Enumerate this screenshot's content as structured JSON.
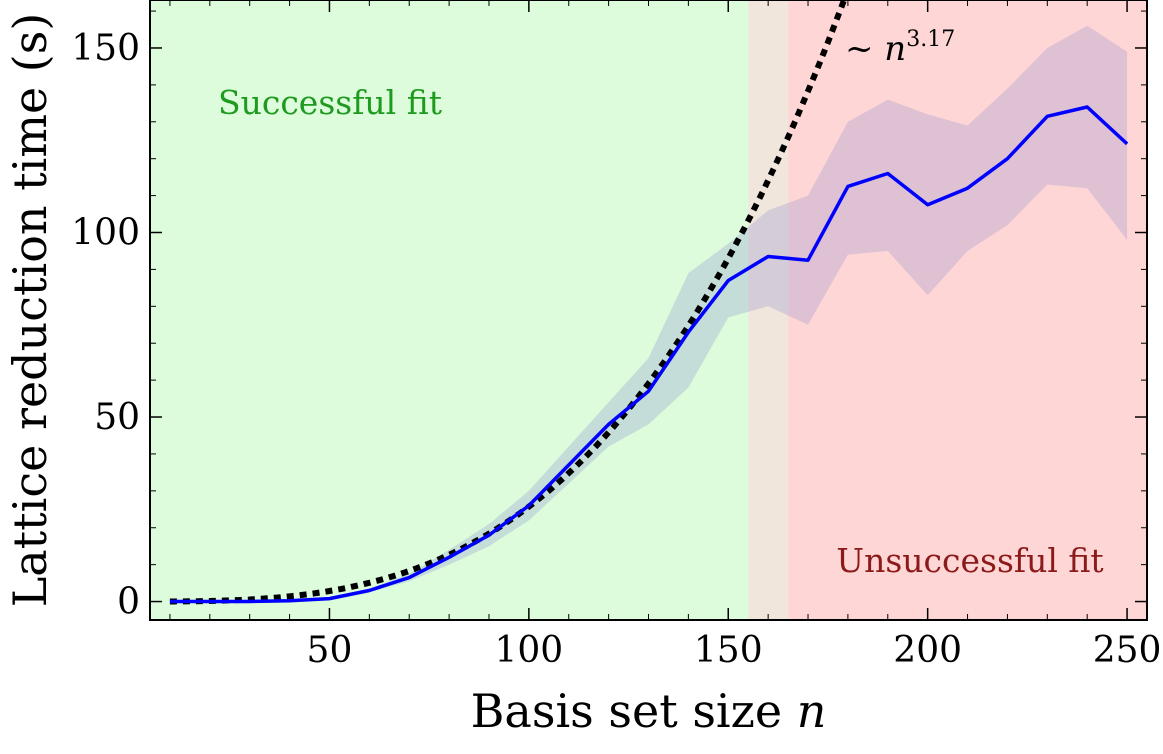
{
  "chart_data": {
    "type": "line",
    "title": "",
    "xlabel": "Basis set size",
    "xlabel_var": "n",
    "ylabel": "Lattice reduction time (s)",
    "xlim": [
      5,
      255
    ],
    "ylim": [
      -5,
      163
    ],
    "x_ticks": [
      50,
      100,
      150,
      200,
      250
    ],
    "y_ticks": [
      0,
      50,
      100,
      150
    ],
    "grid": false,
    "regions": [
      {
        "label": "Successful fit",
        "x_start": 5,
        "x_end": 155,
        "color": "#dcfcdc",
        "label_color": "#1e9a1e"
      },
      {
        "label": "",
        "x_start": 155,
        "x_end": 165,
        "color": "#f0e6dc",
        "label_color": ""
      },
      {
        "label": "Unsuccessful fit",
        "x_start": 165,
        "x_end": 255,
        "color": "#ffd6d6",
        "label_color": "#8b1a1a"
      }
    ],
    "series": [
      {
        "name": "",
        "color": "#0000ff",
        "x": [
          10,
          20,
          30,
          40,
          50,
          60,
          70,
          80,
          90,
          100,
          110,
          120,
          130,
          140,
          150,
          160,
          170,
          180,
          190,
          200,
          210,
          220,
          230,
          240,
          250
        ],
        "y": [
          0,
          0,
          0,
          0.2,
          0.8,
          3,
          6.5,
          12,
          18,
          26,
          37,
          48,
          57,
          73,
          87,
          93.5,
          92.5,
          112.5,
          116,
          107.5,
          112,
          120,
          131.5,
          134,
          124
        ],
        "lower": [
          0,
          0,
          0,
          0,
          0.5,
          2.5,
          5.5,
          10,
          15,
          22,
          32,
          42,
          48,
          58,
          77,
          80,
          75,
          94,
          95,
          83,
          95,
          102,
          113,
          112,
          98
        ],
        "upper": [
          0,
          0,
          0,
          0.5,
          1.2,
          3.5,
          7.5,
          14,
          21,
          30,
          42,
          54,
          66,
          89,
          97,
          106,
          110,
          130,
          136,
          132,
          129,
          139,
          150,
          156,
          149
        ],
        "band_color": "#8c8cd2"
      }
    ],
    "fit_curve": {
      "label_prefix": "~",
      "label_var": "n",
      "label_exponent": "3.17",
      "exponent": 3.17,
      "x_ref": 150,
      "y_ref": 93,
      "color": "#000000"
    }
  }
}
